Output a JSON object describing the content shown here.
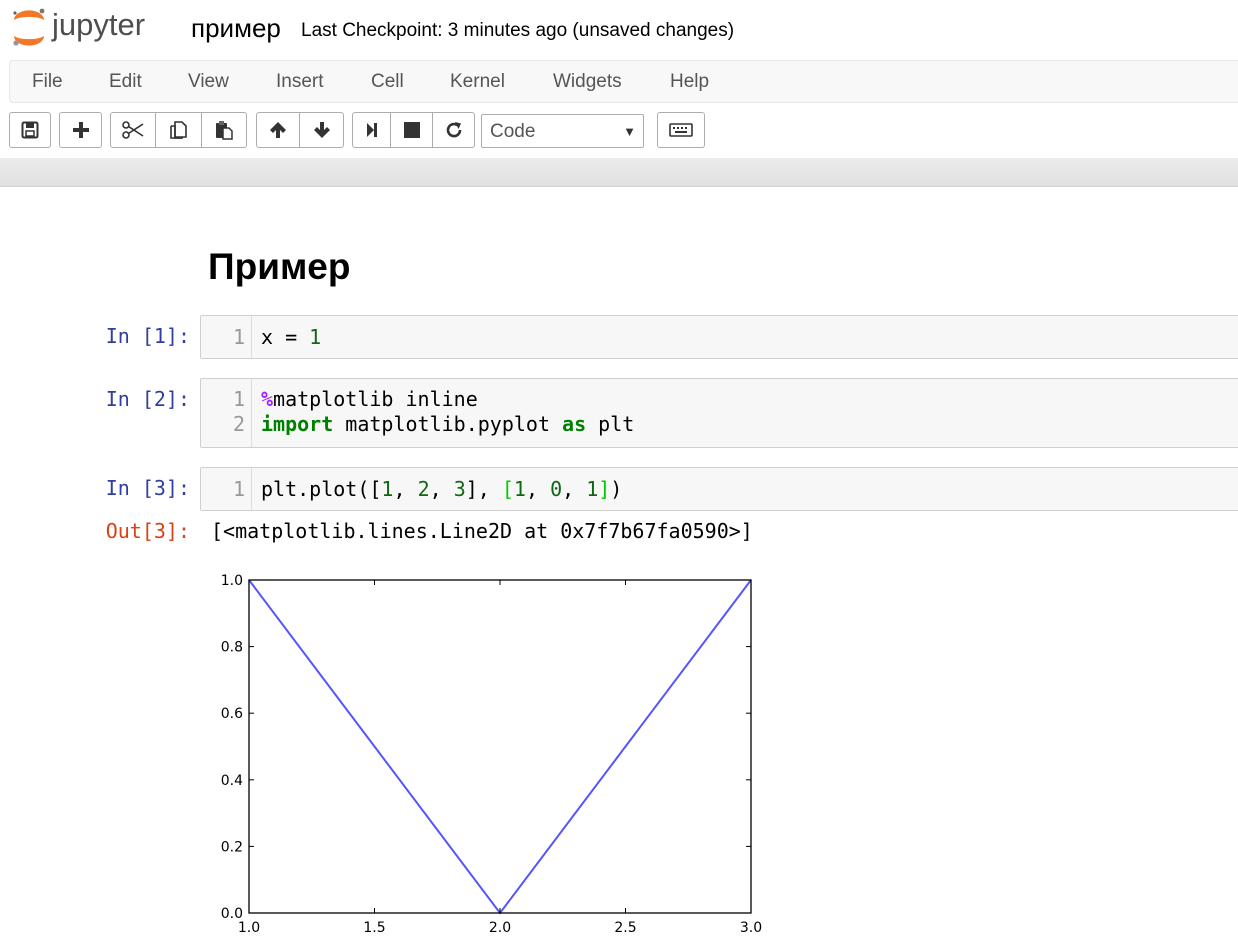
{
  "header": {
    "logo_text": "jupyter",
    "notebook_name": "пример",
    "checkpoint": "Last Checkpoint: 3 minutes ago (unsaved changes)"
  },
  "menubar": {
    "items": [
      "File",
      "Edit",
      "View",
      "Insert",
      "Cell",
      "Kernel",
      "Widgets",
      "Help"
    ]
  },
  "toolbar": {
    "buttons": [
      "save-icon",
      "plus-icon",
      "cut-icon",
      "copy-icon",
      "paste-icon",
      "arrow-up-icon",
      "arrow-down-icon",
      "step-forward-icon",
      "stop-icon",
      "refresh-icon",
      "keyboard-icon"
    ],
    "cell_type": "Code"
  },
  "notebook": {
    "heading": "Пример",
    "cells": [
      {
        "prompt": "In [1]:",
        "lines": [
          {
            "no": "1"
          }
        ]
      },
      {
        "prompt": "In [2]:",
        "lines": [
          {
            "no": "1"
          },
          {
            "no": "2"
          }
        ]
      },
      {
        "prompt": "In [3]:",
        "lines": [
          {
            "no": "1"
          }
        ]
      }
    ],
    "code": {
      "c1_x": "x = ",
      "c1_num": "1",
      "c2_pct": "%",
      "c2_l1": "matplotlib inline",
      "c2_import": "import",
      "c2_mod": " matplotlib.pyplot ",
      "c2_as": "as",
      "c2_plt": " plt",
      "c3_a": "plt.plot([",
      "c3_n1": "1",
      "c3_s1": ", ",
      "c3_n2": "2",
      "c3_s2": ", ",
      "c3_n3": "3",
      "c3_b": "], ",
      "c3_open": "[",
      "c3_m1": "1",
      "c3_s3": ", ",
      "c3_m2": "0",
      "c3_s4": ", ",
      "c3_m3": "1",
      "c3_close": "]",
      "c3_end": ")"
    },
    "out_prompt": "Out[3]:",
    "out_text": "[<matplotlib.lines.Line2D at 0x7f7b67fa0590>]"
  },
  "chart_data": {
    "type": "line",
    "x": [
      1,
      2,
      3
    ],
    "series": [
      {
        "values": [
          1,
          0,
          1
        ],
        "color": "#5555ff"
      }
    ],
    "xlim": [
      1.0,
      3.0
    ],
    "ylim": [
      0.0,
      1.0
    ],
    "xticks": [
      "1.0",
      "1.5",
      "2.0",
      "2.5",
      "3.0"
    ],
    "yticks": [
      "0.0",
      "0.2",
      "0.4",
      "0.6",
      "0.8",
      "1.0"
    ],
    "title": "",
    "xlabel": "",
    "ylabel": "",
    "grid": false
  },
  "colors": {
    "logo_orange": "#f37726",
    "prompt_in": "#303f9f",
    "prompt_out": "#d84315",
    "keyword": "#008000",
    "magic": "#aa22ff",
    "line": "#5555ff"
  }
}
